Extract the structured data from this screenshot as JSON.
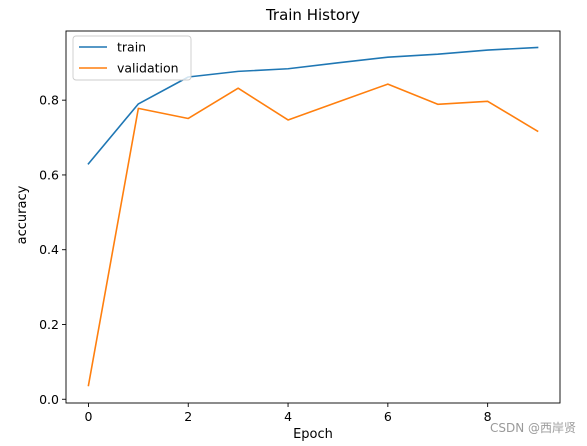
{
  "chart_data": {
    "type": "line",
    "title": "Train History",
    "xlabel": "Epoch",
    "ylabel": "accuracy",
    "x": [
      0,
      1,
      2,
      3,
      4,
      5,
      6,
      7,
      8,
      9
    ],
    "xlim": [
      -0.45,
      9.45
    ],
    "ylim": [
      -0.01,
      0.985
    ],
    "xticks": [
      0,
      2,
      4,
      6,
      8
    ],
    "yticks": [
      0.0,
      0.2,
      0.4,
      0.6,
      0.8
    ],
    "ytick_labels": [
      "0.0",
      "0.2",
      "0.4",
      "0.6",
      "0.8"
    ],
    "grid": false,
    "legend_position": "top-left",
    "series": [
      {
        "name": "train",
        "color": "#1f77b4",
        "values": [
          0.63,
          0.79,
          0.862,
          0.877,
          0.884,
          0.9,
          0.915,
          0.923,
          0.934,
          0.941
        ]
      },
      {
        "name": "validation",
        "color": "#ff7f0e",
        "values": [
          0.037,
          0.778,
          0.751,
          0.832,
          0.747,
          0.795,
          0.843,
          0.789,
          0.797,
          0.717
        ]
      }
    ]
  },
  "watermark": "CSDN @西岸贤"
}
